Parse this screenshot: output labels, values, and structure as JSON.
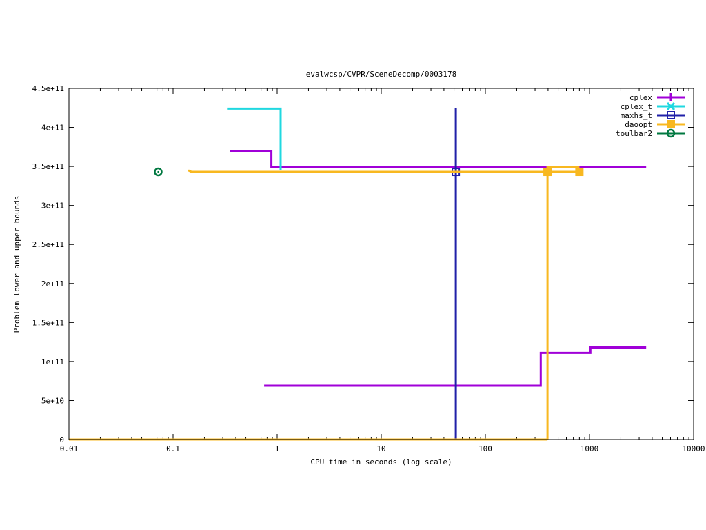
{
  "chart_data": {
    "type": "line",
    "title": "evalwcsp/CVPR/SceneDecomp/0003178",
    "xlabel": "CPU time in seconds (log scale)",
    "ylabel": "Problem lower and upper bounds",
    "xscale": "log",
    "xlim": [
      0.01,
      10000
    ],
    "ylim": [
      0,
      450000000000
    ],
    "grid": false,
    "legend_position": "top-right",
    "x_ticks": [
      {
        "value": 0.01,
        "label": "0.01"
      },
      {
        "value": 0.1,
        "label": "0.1"
      },
      {
        "value": 1,
        "label": "1"
      },
      {
        "value": 10,
        "label": "10"
      },
      {
        "value": 100,
        "label": "100"
      },
      {
        "value": 1000,
        "label": "1000"
      },
      {
        "value": 10000,
        "label": "10000"
      }
    ],
    "y_ticks": [
      {
        "value": 0,
        "label": "0"
      },
      {
        "value": 50000000000,
        "label": "5e+10"
      },
      {
        "value": 100000000000,
        "label": "1e+11"
      },
      {
        "value": 150000000000,
        "label": "1.5e+11"
      },
      {
        "value": 200000000000,
        "label": "2e+11"
      },
      {
        "value": 250000000000,
        "label": "2.5e+11"
      },
      {
        "value": 300000000000,
        "label": "3e+11"
      },
      {
        "value": 350000000000,
        "label": "3.5e+11"
      },
      {
        "value": 400000000000,
        "label": "4e+11"
      },
      {
        "value": 450000000000,
        "label": "4.5e+11"
      }
    ],
    "series": [
      {
        "name": "cplex",
        "color": "#a000d8",
        "marker": "plus",
        "segments": [
          [
            [
              0.35,
              370000000000
            ],
            [
              0.88,
              370000000000
            ],
            [
              0.88,
              349000000000
            ],
            [
              3500,
              349000000000
            ]
          ],
          [
            [
              0.75,
              69000000000
            ],
            [
              340,
              69000000000
            ],
            [
              340,
              111000000000
            ],
            [
              1020,
              111000000000
            ],
            [
              1020,
              118000000000
            ],
            [
              3500,
              118000000000
            ]
          ]
        ],
        "markers": []
      },
      {
        "name": "cplex_t",
        "color": "#20d8e0",
        "marker": "cross",
        "segments": [
          [
            [
              0.33,
              424000000000
            ],
            [
              1.08,
              424000000000
            ],
            [
              1.08,
              345000000000
            ]
          ]
        ],
        "markers": []
      },
      {
        "name": "maxhs_t",
        "color": "#2020a8",
        "marker": "open-square",
        "segments": [
          [
            [
              52,
              0
            ],
            [
              52,
              425000000000
            ]
          ]
        ],
        "markers": [
          [
            52,
            343000000000
          ]
        ]
      },
      {
        "name": "daoopt",
        "color": "#f8b820",
        "marker": "filled-square",
        "segments": [
          [
            [
              0.14,
              345000000000
            ],
            [
              0.15,
              343000000000
            ],
            [
              800,
              343000000000
            ]
          ],
          [
            [
              395,
              0
            ],
            [
              395,
              349000000000
            ],
            [
              800,
              349000000000
            ]
          ],
          [
            [
              0.01,
              0
            ],
            [
              395,
              0
            ]
          ]
        ],
        "markers": [
          [
            395,
            343000000000
          ],
          [
            800,
            343000000000
          ]
        ]
      },
      {
        "name": "toulbar2",
        "color": "#007840",
        "marker": "open-circle",
        "segments": [],
        "markers": [
          [
            0.072,
            343000000000
          ]
        ]
      }
    ]
  }
}
